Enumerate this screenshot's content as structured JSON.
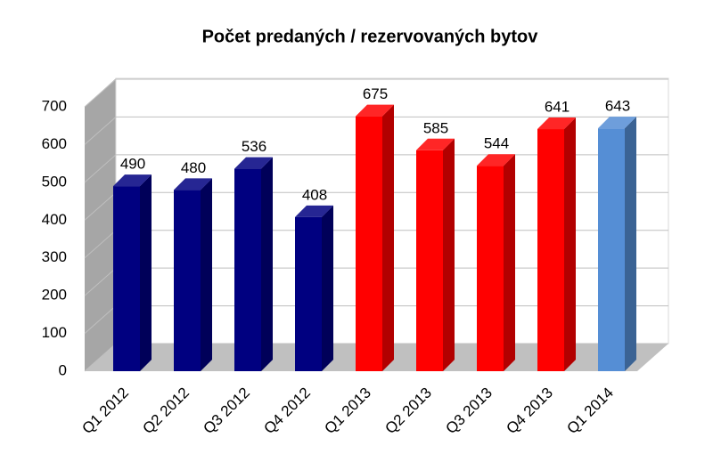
{
  "chart_data": {
    "type": "bar",
    "title": "Počet predaných / rezervovaných bytov",
    "categories": [
      "Q1 2012",
      "Q2 2012",
      "Q3 2012",
      "Q4 2012",
      "Q1 2013",
      "Q2 2013",
      "Q3 2013",
      "Q4 2013",
      "Q1 2014"
    ],
    "values": [
      490,
      480,
      536,
      408,
      675,
      585,
      544,
      641,
      643
    ],
    "colors": [
      "#000080",
      "#000080",
      "#000080",
      "#000080",
      "#ff0000",
      "#ff0000",
      "#ff0000",
      "#ff0000",
      "#558ed5"
    ],
    "ylim": [
      0,
      700
    ],
    "yticks": [
      0,
      100,
      200,
      300,
      400,
      500,
      600,
      700
    ],
    "grid": true
  }
}
